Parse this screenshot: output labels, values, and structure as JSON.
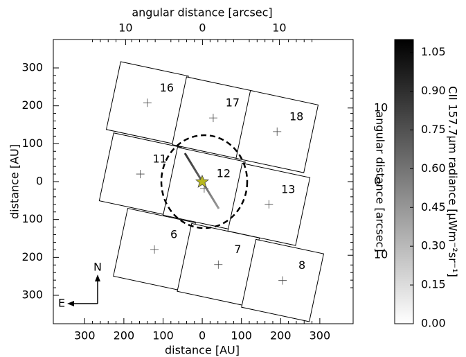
{
  "chart_data": {
    "type": "footprint",
    "xlabel": "distance [AU]",
    "ylabel": "distance [AU]",
    "x2label": "angular distance [arcsec]",
    "y2label": "angular distance [arcsec]",
    "clabel": "CII 157.7μm radiance [μWm⁻²sr⁻¹]",
    "xlim": [
      380,
      -385
    ],
    "ylim": [
      -375,
      375
    ],
    "xticks": [
      300,
      200,
      100,
      0,
      {
        "value": -100,
        "label": "100"
      },
      {
        "value": -200,
        "label": "200"
      },
      {
        "value": -300,
        "label": "300"
      }
    ],
    "yticks": [
      300,
      200,
      100,
      0,
      {
        "value": -100,
        "label": "100"
      },
      {
        "value": -200,
        "label": "200"
      },
      {
        "value": -300,
        "label": "300"
      }
    ],
    "x2lim": [
      19.4,
      -19.6
    ],
    "x2ticks": [
      10,
      0,
      {
        "value": -10,
        "label": "10"
      }
    ],
    "y2lim": [
      -19.3,
      19.3
    ],
    "y2ticks": [
      10,
      0,
      {
        "value": -10,
        "label": "10"
      }
    ],
    "clim": [
      0,
      1.1
    ],
    "cticks": [
      {
        "value": 0,
        "label": "0.00"
      },
      {
        "value": 0.15,
        "label": "0.15"
      },
      {
        "value": 0.3,
        "label": "0.30"
      },
      {
        "value": 0.45,
        "label": "0.45"
      },
      {
        "value": 0.6,
        "label": "0.60"
      },
      {
        "value": 0.75,
        "label": "0.75"
      },
      {
        "value": 0.9,
        "label": "0.90"
      },
      {
        "value": 1.05,
        "label": "1.05"
      }
    ],
    "spaxels": [
      {
        "label": "16",
        "x": 140,
        "y": 208
      },
      {
        "label": "17",
        "x": -28,
        "y": 168
      },
      {
        "label": "18",
        "x": -191,
        "y": 132
      },
      {
        "label": "11",
        "x": 158,
        "y": 20
      },
      {
        "label": "12",
        "x": -5,
        "y": -18
      },
      {
        "label": "13",
        "x": -170,
        "y": -60
      },
      {
        "label": "6",
        "x": 122,
        "y": -179
      },
      {
        "label": "7",
        "x": -41,
        "y": -219
      },
      {
        "label": "8",
        "x": -205,
        "y": -261
      }
    ],
    "compass": {
      "north": "N",
      "east": "E"
    }
  }
}
